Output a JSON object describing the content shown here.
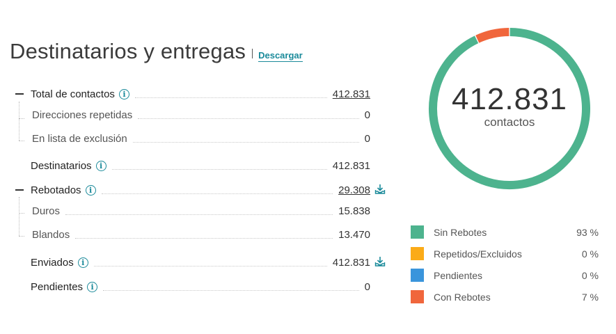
{
  "header": {
    "title": "Destinatarios y entregas",
    "download_label": "Descargar"
  },
  "rows": [
    {
      "key": "total",
      "label": "Total de contactos",
      "value": "412.831",
      "info": true,
      "collapse": true,
      "link": true
    },
    {
      "key": "repetidas",
      "label": "Direcciones repetidas",
      "value": "0"
    },
    {
      "key": "exclusion",
      "label": "En lista de exclusión",
      "value": "0"
    },
    {
      "key": "destinatarios",
      "label": "Destinatarios",
      "value": "412.831",
      "info": true
    },
    {
      "key": "rebotados",
      "label": "Rebotados",
      "value": "29.308",
      "info": true,
      "collapse": true,
      "link": true,
      "download": true
    },
    {
      "key": "duros",
      "label": "Duros",
      "value": "15.838"
    },
    {
      "key": "blandos",
      "label": "Blandos",
      "value": "13.470"
    },
    {
      "key": "enviados",
      "label": "Enviados",
      "value": "412.831",
      "info": true,
      "download": true
    },
    {
      "key": "pendientes",
      "label": "Pendientes",
      "value": "0",
      "info": true
    }
  ],
  "info_glyph": "i",
  "donut": {
    "value": "412.831",
    "label": "contactos"
  },
  "chart_data": {
    "type": "pie",
    "categories": [
      "Sin Rebotes",
      "Repetidos/Excluidos",
      "Pendientes",
      "Con Rebotes"
    ],
    "values": [
      93,
      0,
      0,
      7
    ],
    "colors": [
      "#4db38e",
      "#fbab18",
      "#3a95dc",
      "#f0663c"
    ],
    "percent_labels": [
      "93 %",
      "0 %",
      "0 %",
      "7 %"
    ]
  },
  "icons": {
    "info": "info-circle-icon",
    "download": "download-tray-icon"
  }
}
